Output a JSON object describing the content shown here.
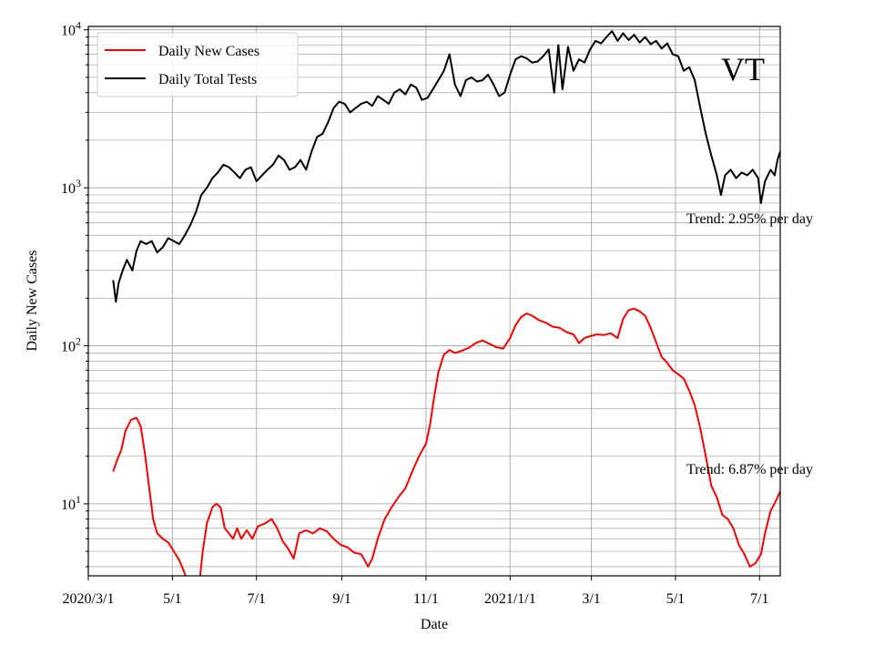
{
  "chart_data": {
    "type": "line",
    "title": "",
    "state_label": "VT",
    "xlabel": "Date",
    "ylabel": "Daily New Cases",
    "yscale": "log",
    "ylim": [
      3.5,
      10500
    ],
    "xlim": [
      "2020-03-01",
      "2021-07-16"
    ],
    "grid": true,
    "legend_position": "top-left",
    "x_ticks": [
      {
        "date": "2020-03-01",
        "label": "2020/3/1"
      },
      {
        "date": "2020-05-01",
        "label": "5/1"
      },
      {
        "date": "2020-07-01",
        "label": "7/1"
      },
      {
        "date": "2020-09-01",
        "label": "9/1"
      },
      {
        "date": "2020-11-01",
        "label": "11/1"
      },
      {
        "date": "2021-01-01",
        "label": "2021/1/1"
      },
      {
        "date": "2021-03-01",
        "label": "3/1"
      },
      {
        "date": "2021-05-01",
        "label": "5/1"
      },
      {
        "date": "2021-07-01",
        "label": "7/1"
      }
    ],
    "y_ticks": [
      {
        "value": 10,
        "base": "10",
        "exp": "1"
      },
      {
        "value": 100,
        "base": "10",
        "exp": "2"
      },
      {
        "value": 1000,
        "base": "10",
        "exp": "3"
      },
      {
        "value": 10000,
        "base": "10",
        "exp": "4"
      }
    ],
    "series": [
      {
        "name": "Daily New Cases",
        "color": "#ff0000",
        "points": [
          [
            "2020-03-19",
            16
          ],
          [
            "2020-03-22",
            19
          ],
          [
            "2020-03-25",
            22
          ],
          [
            "2020-03-28",
            29
          ],
          [
            "2020-04-01",
            34
          ],
          [
            "2020-04-05",
            35
          ],
          [
            "2020-04-08",
            31
          ],
          [
            "2020-04-11",
            21
          ],
          [
            "2020-04-14",
            13
          ],
          [
            "2020-04-17",
            8
          ],
          [
            "2020-04-20",
            6.5
          ],
          [
            "2020-04-24",
            6
          ],
          [
            "2020-04-28",
            5.7
          ],
          [
            "2020-05-02",
            5
          ],
          [
            "2020-05-06",
            4.4
          ],
          [
            "2020-05-09",
            3.8
          ],
          [
            "2020-05-11",
            3.4
          ],
          [
            "2020-05-21",
            3.4
          ],
          [
            "2020-05-23",
            5
          ],
          [
            "2020-05-26",
            7.5
          ],
          [
            "2020-05-30",
            9.5
          ],
          [
            "2020-06-02",
            10
          ],
          [
            "2020-06-05",
            9.5
          ],
          [
            "2020-06-08",
            7
          ],
          [
            "2020-06-11",
            6.5
          ],
          [
            "2020-06-14",
            6
          ],
          [
            "2020-06-17",
            7
          ],
          [
            "2020-06-20",
            6
          ],
          [
            "2020-06-24",
            6.8
          ],
          [
            "2020-06-28",
            6
          ],
          [
            "2020-07-02",
            7.2
          ],
          [
            "2020-07-07",
            7.5
          ],
          [
            "2020-07-12",
            8
          ],
          [
            "2020-07-16",
            7
          ],
          [
            "2020-07-20",
            5.8
          ],
          [
            "2020-07-24",
            5.2
          ],
          [
            "2020-07-28",
            4.5
          ],
          [
            "2020-08-01",
            6.5
          ],
          [
            "2020-08-06",
            6.8
          ],
          [
            "2020-08-11",
            6.5
          ],
          [
            "2020-08-16",
            7
          ],
          [
            "2020-08-21",
            6.7
          ],
          [
            "2020-08-26",
            6
          ],
          [
            "2020-08-31",
            5.5
          ],
          [
            "2020-09-05",
            5.3
          ],
          [
            "2020-09-10",
            4.9
          ],
          [
            "2020-09-15",
            4.8
          ],
          [
            "2020-09-20",
            4
          ],
          [
            "2020-09-23",
            4.5
          ],
          [
            "2020-09-27",
            6
          ],
          [
            "2020-10-02",
            8
          ],
          [
            "2020-10-07",
            9.5
          ],
          [
            "2020-10-12",
            11
          ],
          [
            "2020-10-17",
            12.5
          ],
          [
            "2020-10-22",
            16
          ],
          [
            "2020-10-27",
            20
          ],
          [
            "2020-11-01",
            24
          ],
          [
            "2020-11-04",
            32
          ],
          [
            "2020-11-07",
            48
          ],
          [
            "2020-11-10",
            68
          ],
          [
            "2020-11-14",
            88
          ],
          [
            "2020-11-18",
            94
          ],
          [
            "2020-11-22",
            90
          ],
          [
            "2020-11-27",
            93
          ],
          [
            "2020-12-02",
            97
          ],
          [
            "2020-12-07",
            104
          ],
          [
            "2020-12-12",
            108
          ],
          [
            "2020-12-17",
            103
          ],
          [
            "2020-12-22",
            98
          ],
          [
            "2020-12-27",
            96
          ],
          [
            "2021-01-01",
            112
          ],
          [
            "2021-01-05",
            135
          ],
          [
            "2021-01-09",
            152
          ],
          [
            "2021-01-13",
            160
          ],
          [
            "2021-01-17",
            155
          ],
          [
            "2021-01-22",
            145
          ],
          [
            "2021-01-27",
            140
          ],
          [
            "2021-02-01",
            132
          ],
          [
            "2021-02-06",
            130
          ],
          [
            "2021-02-11",
            122
          ],
          [
            "2021-02-16",
            118
          ],
          [
            "2021-02-20",
            104
          ],
          [
            "2021-02-24",
            112
          ],
          [
            "2021-02-28",
            115
          ],
          [
            "2021-03-05",
            118
          ],
          [
            "2021-03-10",
            117
          ],
          [
            "2021-03-15",
            120
          ],
          [
            "2021-03-20",
            112
          ],
          [
            "2021-03-24",
            148
          ],
          [
            "2021-03-28",
            168
          ],
          [
            "2021-04-01",
            172
          ],
          [
            "2021-04-05",
            165
          ],
          [
            "2021-04-09",
            155
          ],
          [
            "2021-04-13",
            130
          ],
          [
            "2021-04-17",
            105
          ],
          [
            "2021-04-21",
            85
          ],
          [
            "2021-04-25",
            78
          ],
          [
            "2021-04-29",
            70
          ],
          [
            "2021-05-03",
            66
          ],
          [
            "2021-05-07",
            62
          ],
          [
            "2021-05-11",
            52
          ],
          [
            "2021-05-15",
            42
          ],
          [
            "2021-05-19",
            30
          ],
          [
            "2021-05-23",
            20
          ],
          [
            "2021-05-27",
            13
          ],
          [
            "2021-05-31",
            11
          ],
          [
            "2021-06-04",
            8.5
          ],
          [
            "2021-06-08",
            8
          ],
          [
            "2021-06-12",
            7
          ],
          [
            "2021-06-16",
            5.5
          ],
          [
            "2021-06-20",
            4.8
          ],
          [
            "2021-06-24",
            4
          ],
          [
            "2021-06-28",
            4.2
          ],
          [
            "2021-07-02",
            4.8
          ],
          [
            "2021-07-05",
            6.5
          ],
          [
            "2021-07-09",
            9
          ],
          [
            "2021-07-13",
            10.5
          ],
          [
            "2021-07-16",
            12
          ]
        ]
      },
      {
        "name": "Daily Total Tests",
        "color": "#000000",
        "points": [
          [
            "2020-03-19",
            260
          ],
          [
            "2020-03-21",
            190
          ],
          [
            "2020-03-23",
            250
          ],
          [
            "2020-03-26",
            300
          ],
          [
            "2020-03-29",
            350
          ],
          [
            "2020-04-02",
            300
          ],
          [
            "2020-04-05",
            400
          ],
          [
            "2020-04-08",
            460
          ],
          [
            "2020-04-12",
            440
          ],
          [
            "2020-04-16",
            460
          ],
          [
            "2020-04-20",
            390
          ],
          [
            "2020-04-24",
            420
          ],
          [
            "2020-04-28",
            480
          ],
          [
            "2020-05-02",
            460
          ],
          [
            "2020-05-06",
            440
          ],
          [
            "2020-05-10",
            500
          ],
          [
            "2020-05-14",
            580
          ],
          [
            "2020-05-18",
            700
          ],
          [
            "2020-05-22",
            900
          ],
          [
            "2020-05-26",
            1000
          ],
          [
            "2020-05-30",
            1150
          ],
          [
            "2020-06-03",
            1250
          ],
          [
            "2020-06-07",
            1400
          ],
          [
            "2020-06-11",
            1350
          ],
          [
            "2020-06-15",
            1250
          ],
          [
            "2020-06-19",
            1150
          ],
          [
            "2020-06-23",
            1300
          ],
          [
            "2020-06-27",
            1350
          ],
          [
            "2020-07-01",
            1100
          ],
          [
            "2020-07-05",
            1200
          ],
          [
            "2020-07-09",
            1300
          ],
          [
            "2020-07-13",
            1400
          ],
          [
            "2020-07-17",
            1600
          ],
          [
            "2020-07-21",
            1500
          ],
          [
            "2020-07-25",
            1300
          ],
          [
            "2020-07-29",
            1350
          ],
          [
            "2020-08-02",
            1500
          ],
          [
            "2020-08-06",
            1300
          ],
          [
            "2020-08-10",
            1700
          ],
          [
            "2020-08-14",
            2100
          ],
          [
            "2020-08-18",
            2200
          ],
          [
            "2020-08-22",
            2600
          ],
          [
            "2020-08-26",
            3200
          ],
          [
            "2020-08-30",
            3500
          ],
          [
            "2020-09-03",
            3400
          ],
          [
            "2020-09-07",
            3000
          ],
          [
            "2020-09-11",
            3200
          ],
          [
            "2020-09-15",
            3400
          ],
          [
            "2020-09-19",
            3500
          ],
          [
            "2020-09-23",
            3300
          ],
          [
            "2020-09-27",
            3800
          ],
          [
            "2020-10-01",
            3600
          ],
          [
            "2020-10-05",
            3400
          ],
          [
            "2020-10-09",
            4000
          ],
          [
            "2020-10-13",
            4200
          ],
          [
            "2020-10-17",
            3900
          ],
          [
            "2020-10-21",
            4500
          ],
          [
            "2020-10-25",
            4300
          ],
          [
            "2020-10-29",
            3600
          ],
          [
            "2020-11-02",
            3700
          ],
          [
            "2020-11-06",
            4200
          ],
          [
            "2020-11-10",
            4800
          ],
          [
            "2020-11-14",
            5500
          ],
          [
            "2020-11-18",
            7000
          ],
          [
            "2020-11-22",
            4500
          ],
          [
            "2020-11-26",
            3800
          ],
          [
            "2020-11-30",
            4800
          ],
          [
            "2020-12-04",
            5000
          ],
          [
            "2020-12-08",
            4700
          ],
          [
            "2020-12-12",
            4800
          ],
          [
            "2020-12-16",
            5200
          ],
          [
            "2020-12-20",
            4500
          ],
          [
            "2020-12-24",
            3800
          ],
          [
            "2020-12-28",
            4000
          ],
          [
            "2021-01-01",
            5200
          ],
          [
            "2021-01-05",
            6500
          ],
          [
            "2021-01-09",
            6800
          ],
          [
            "2021-01-13",
            6600
          ],
          [
            "2021-01-17",
            6200
          ],
          [
            "2021-01-21",
            6300
          ],
          [
            "2021-01-25",
            6800
          ],
          [
            "2021-01-29",
            7500
          ],
          [
            "2021-02-02",
            4000
          ],
          [
            "2021-02-05",
            8000
          ],
          [
            "2021-02-08",
            4200
          ],
          [
            "2021-02-12",
            7800
          ],
          [
            "2021-02-16",
            5500
          ],
          [
            "2021-02-20",
            6500
          ],
          [
            "2021-02-24",
            6200
          ],
          [
            "2021-02-28",
            7500
          ],
          [
            "2021-03-04",
            8500
          ],
          [
            "2021-03-08",
            8200
          ],
          [
            "2021-03-12",
            9000
          ],
          [
            "2021-03-16",
            9800
          ],
          [
            "2021-03-20",
            8500
          ],
          [
            "2021-03-24",
            9500
          ],
          [
            "2021-03-28",
            8600
          ],
          [
            "2021-04-01",
            9300
          ],
          [
            "2021-04-05",
            8300
          ],
          [
            "2021-04-09",
            9000
          ],
          [
            "2021-04-13",
            8100
          ],
          [
            "2021-04-17",
            8500
          ],
          [
            "2021-04-21",
            7600
          ],
          [
            "2021-04-25",
            8200
          ],
          [
            "2021-04-29",
            7000
          ],
          [
            "2021-05-03",
            6800
          ],
          [
            "2021-05-07",
            5500
          ],
          [
            "2021-05-11",
            5800
          ],
          [
            "2021-05-15",
            4800
          ],
          [
            "2021-05-19",
            3200
          ],
          [
            "2021-05-23",
            2200
          ],
          [
            "2021-05-27",
            1600
          ],
          [
            "2021-05-31",
            1200
          ],
          [
            "2021-06-03",
            900
          ],
          [
            "2021-06-06",
            1200
          ],
          [
            "2021-06-10",
            1300
          ],
          [
            "2021-06-14",
            1150
          ],
          [
            "2021-06-18",
            1250
          ],
          [
            "2021-06-22",
            1200
          ],
          [
            "2021-06-26",
            1300
          ],
          [
            "2021-06-30",
            1150
          ],
          [
            "2021-07-02",
            800
          ],
          [
            "2021-07-05",
            1100
          ],
          [
            "2021-07-09",
            1300
          ],
          [
            "2021-07-12",
            1200
          ],
          [
            "2021-07-14",
            1500
          ],
          [
            "2021-07-16",
            1700
          ]
        ]
      }
    ],
    "annotations": [
      {
        "text": "Trend: 2.95% per day"
      },
      {
        "text": "Trend: 6.87% per day"
      }
    ]
  }
}
